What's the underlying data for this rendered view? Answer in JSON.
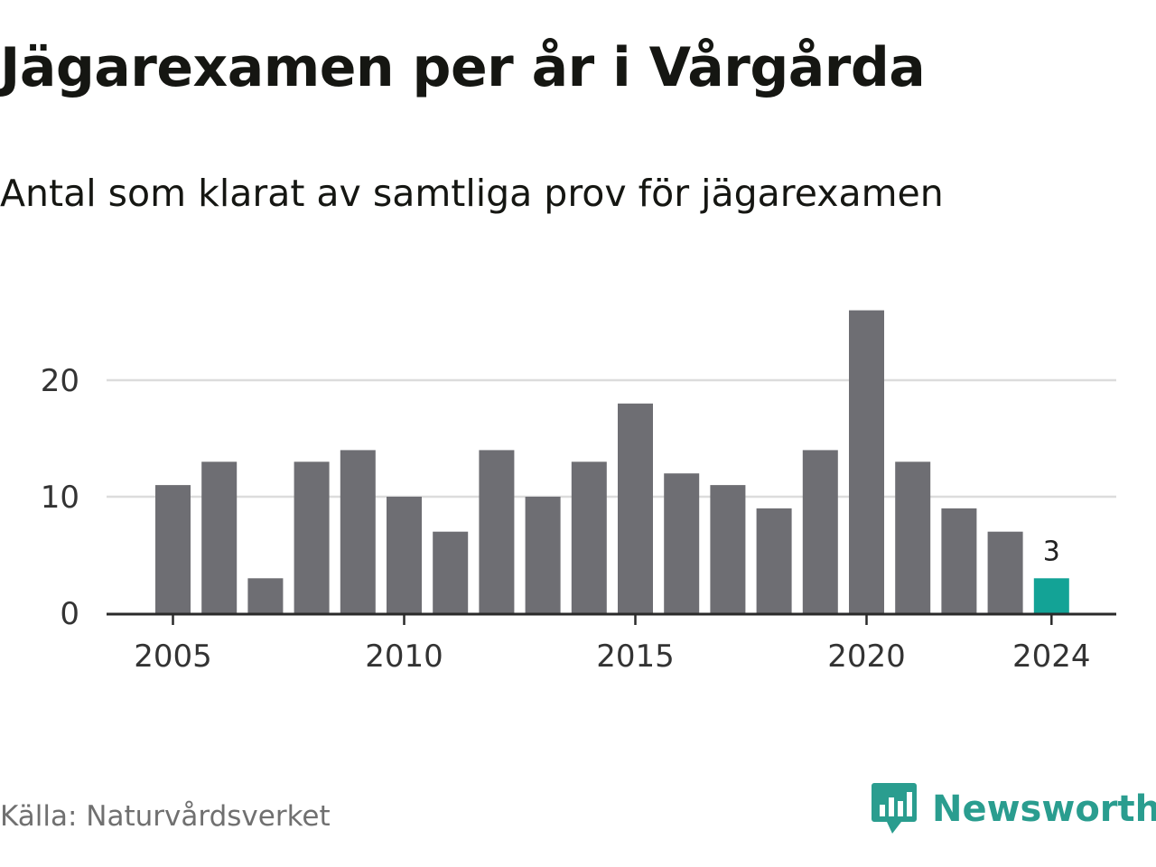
{
  "title": "Jägarexamen per år i Vårgårda",
  "subtitle": "Antal som klarat av samtliga prov för jägarexamen",
  "source": "Källa: Naturvårdsverket",
  "brand": {
    "name": "Newsworthy",
    "icon": "newsworthy-logo-icon",
    "color": "#2a9d8f"
  },
  "colors": {
    "bar": "#6e6e73",
    "highlight": "#13a396",
    "grid": "#dcdcdc",
    "axis": "#2a2a2a",
    "tick_text": "#333333"
  },
  "chart_data": {
    "type": "bar",
    "categories": [
      2005,
      2006,
      2007,
      2008,
      2009,
      2010,
      2011,
      2012,
      2013,
      2014,
      2015,
      2016,
      2017,
      2018,
      2019,
      2020,
      2021,
      2022,
      2023,
      2024
    ],
    "values": [
      11,
      13,
      3,
      13,
      14,
      10,
      7,
      14,
      10,
      13,
      18,
      12,
      11,
      9,
      14,
      26,
      13,
      9,
      7,
      3
    ],
    "title": "Jägarexamen per år i Vårgårda",
    "subtitle": "Antal som klarat av samtliga prov för jägarexamen",
    "ylim": [
      0,
      27
    ],
    "yticks": [
      0,
      10,
      20
    ],
    "xticks": [
      2005,
      2010,
      2015,
      2020,
      2024
    ],
    "highlight": {
      "category": 2024,
      "label": "3"
    },
    "grid": true
  }
}
